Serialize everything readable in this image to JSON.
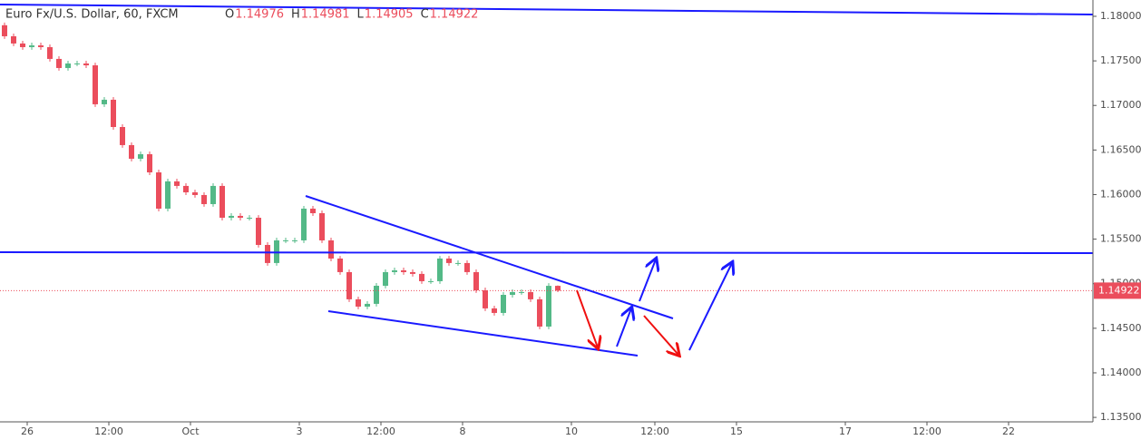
{
  "chart_data": {
    "type": "candlestick",
    "title": "Euro Fx/U.S. Dollar, 60, FXCM",
    "ohlc_labels": [
      "O",
      "H",
      "L",
      "C"
    ],
    "up_color": "#53b987",
    "down_color": "#eb4d5c",
    "open": [
      1.179,
      1.17776,
      1.17695,
      1.17654,
      1.17674,
      1.17654,
      1.17522,
      1.1742,
      1.17471,
      1.17471,
      1.1745,
      1.17013,
      1.17064,
      1.16758,
      1.16555,
      1.16402,
      1.16453,
      1.16249,
      1.15842,
      1.16148,
      1.16097,
      1.16025,
      1.15995,
      1.15893,
      1.16097,
      1.1574,
      1.15761,
      1.1574,
      1.1574,
      1.15435,
      1.15232,
      1.15486,
      1.15486,
      1.15486,
      1.15842,
      1.15791,
      1.15486,
      1.15282,
      1.1513,
      1.14825,
      1.14743,
      1.14774,
      1.14977,
      1.1513,
      1.1515,
      1.1513,
      1.1511,
      1.15028,
      1.15028,
      1.15282,
      1.15232,
      1.15232,
      1.1513,
      1.14926,
      1.14723,
      1.14672,
      1.14875,
      1.14906,
      1.14906,
      1.14825,
      1.14519,
      1.14976
    ],
    "high": [
      1.1793,
      1.17806,
      1.17725,
      1.17704,
      1.17704,
      1.17684,
      1.17552,
      1.17501,
      1.17501,
      1.17501,
      1.1748,
      1.17094,
      1.17094,
      1.16788,
      1.16585,
      1.16483,
      1.16483,
      1.16279,
      1.16178,
      1.16178,
      1.16127,
      1.16055,
      1.16025,
      1.16127,
      1.16127,
      1.15791,
      1.15791,
      1.1577,
      1.1577,
      1.15465,
      1.15516,
      1.15516,
      1.15516,
      1.15872,
      1.15872,
      1.15821,
      1.15516,
      1.15312,
      1.1516,
      1.14855,
      1.14804,
      1.15007,
      1.1516,
      1.1518,
      1.1518,
      1.1516,
      1.1514,
      1.15058,
      1.15312,
      1.15312,
      1.15262,
      1.15262,
      1.1516,
      1.14956,
      1.14753,
      1.14905,
      1.14936,
      1.14936,
      1.14936,
      1.14855,
      1.15006,
      1.14981
    ],
    "low": [
      1.17746,
      1.17665,
      1.17624,
      1.17624,
      1.17624,
      1.17492,
      1.1739,
      1.1739,
      1.17441,
      1.1742,
      1.16983,
      1.16983,
      1.16728,
      1.16525,
      1.16372,
      1.16372,
      1.16219,
      1.15812,
      1.15812,
      1.16067,
      1.15995,
      1.15965,
      1.15863,
      1.15863,
      1.1571,
      1.1571,
      1.1571,
      1.1571,
      1.15405,
      1.15202,
      1.15202,
      1.15456,
      1.15456,
      1.15456,
      1.15761,
      1.15456,
      1.15252,
      1.151,
      1.14795,
      1.14713,
      1.14713,
      1.14744,
      1.14947,
      1.151,
      1.151,
      1.1508,
      1.14998,
      1.14998,
      1.14998,
      1.15202,
      1.15202,
      1.151,
      1.14896,
      1.14693,
      1.14642,
      1.14642,
      1.14845,
      1.14876,
      1.14795,
      1.14489,
      1.14489,
      1.14905
    ],
    "close": [
      1.17776,
      1.17695,
      1.17654,
      1.17674,
      1.17654,
      1.17522,
      1.1742,
      1.17471,
      1.17471,
      1.1745,
      1.17013,
      1.17064,
      1.16758,
      1.16555,
      1.16402,
      1.16453,
      1.16249,
      1.15842,
      1.16148,
      1.16097,
      1.16025,
      1.15995,
      1.15893,
      1.16097,
      1.1574,
      1.15761,
      1.1574,
      1.1574,
      1.15435,
      1.15232,
      1.15486,
      1.15486,
      1.15486,
      1.15842,
      1.15791,
      1.15486,
      1.15282,
      1.1513,
      1.14825,
      1.14743,
      1.14774,
      1.14977,
      1.1513,
      1.1515,
      1.1513,
      1.1511,
      1.15028,
      1.15028,
      1.15282,
      1.15232,
      1.15232,
      1.1513,
      1.14926,
      1.14723,
      1.14672,
      1.14875,
      1.14906,
      1.14906,
      1.14825,
      1.14519,
      1.14976,
      1.14922
    ],
    "xlim": [
      0,
      120.5
    ],
    "xticks": [
      {
        "value": 3,
        "label": "26"
      },
      {
        "value": 12,
        "label": "12:00"
      },
      {
        "value": 21,
        "label": "Oct"
      },
      {
        "value": 33,
        "label": "3"
      },
      {
        "value": 42,
        "label": "12:00"
      },
      {
        "value": 51,
        "label": "8"
      },
      {
        "value": 63,
        "label": "10"
      },
      {
        "value": 72.2,
        "label": "12:00"
      },
      {
        "value": 81.2,
        "label": "15"
      },
      {
        "value": 93.2,
        "label": "17"
      },
      {
        "value": 102.2,
        "label": "12:00"
      },
      {
        "value": 111.2,
        "label": "22"
      }
    ],
    "ylim": [
      1.1345,
      1.18183
    ],
    "yticks": [
      {
        "value": 1.135,
        "label": "1.13500"
      },
      {
        "value": 1.14,
        "label": "1.14000"
      },
      {
        "value": 1.145,
        "label": "1.14500"
      },
      {
        "value": 1.15,
        "label": "1.15000"
      },
      {
        "value": 1.155,
        "label": "1.15500"
      },
      {
        "value": 1.16,
        "label": "1.16000"
      },
      {
        "value": 1.165,
        "label": "1.16500"
      },
      {
        "value": 1.17,
        "label": "1.17000"
      },
      {
        "value": 1.175,
        "label": "1.17500"
      },
      {
        "value": 1.18,
        "label": "1.18000"
      }
    ]
  }
}
